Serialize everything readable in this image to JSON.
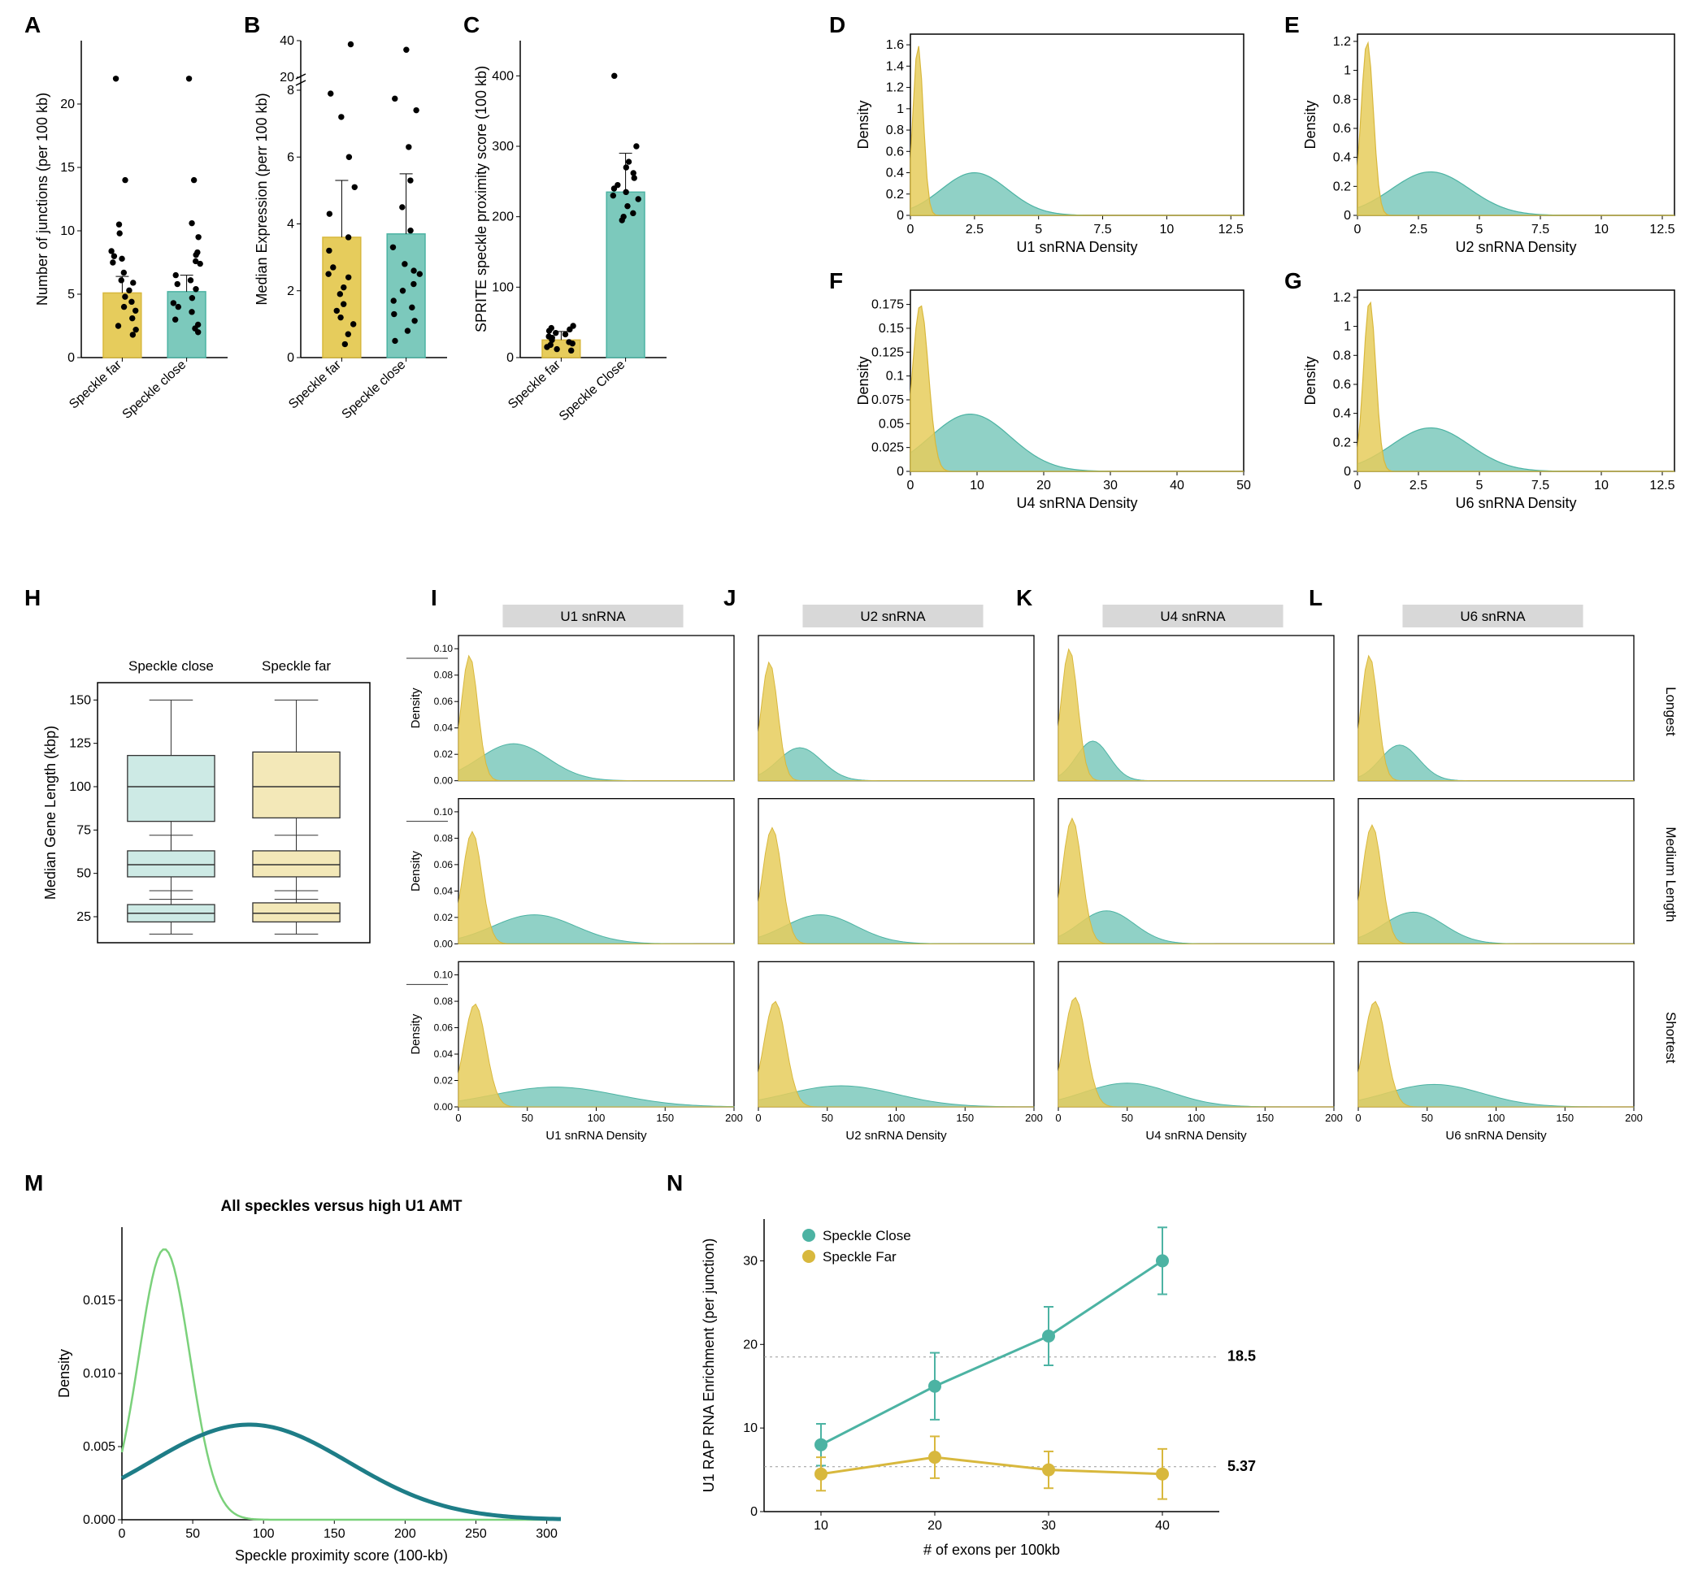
{
  "colors": {
    "teal": "#4cb3a3",
    "tealFill": "#7cc9bc",
    "yellow": "#d8b83d",
    "yellowFill": "#e6cc5c",
    "darkTeal": "#1e7d87",
    "lightGreen": "#7bd17b",
    "grid": "#d9d9d9",
    "axis": "#000",
    "dot": "#000",
    "dash": "#999"
  },
  "labels": {
    "A": "A",
    "B": "B",
    "C": "C",
    "D": "D",
    "E": "E",
    "F": "F",
    "G": "G",
    "H": "H",
    "I": "I",
    "J": "J",
    "K": "K",
    "L": "L",
    "M": "M",
    "N": "N"
  },
  "A": {
    "ylabel": "Number of junctions (per 100 kb)",
    "xcats": [
      "Speckle far",
      "Speckle close"
    ],
    "ylim": [
      0,
      25
    ],
    "yticks": [
      0,
      5,
      10,
      15,
      20
    ],
    "bars": [
      {
        "v": 5.1,
        "err": 1.3,
        "color": "yellow"
      },
      {
        "v": 5.2,
        "err": 1.3,
        "color": "teal"
      }
    ],
    "pts": [
      [
        1,
        4
      ],
      [
        1,
        4.8
      ],
      [
        1,
        5.3
      ],
      [
        1,
        3.1
      ],
      [
        1,
        2.2
      ],
      [
        1,
        6.7
      ],
      [
        1,
        7.5
      ],
      [
        1,
        8.4
      ],
      [
        1,
        1.8
      ],
      [
        1,
        2.5
      ],
      [
        1,
        3.7
      ],
      [
        1,
        4.4
      ],
      [
        1,
        5.9
      ],
      [
        1,
        6.1
      ],
      [
        1,
        9.8
      ],
      [
        1,
        10.5
      ],
      [
        1,
        7.8
      ],
      [
        1,
        8
      ],
      [
        1,
        14
      ],
      [
        1,
        22
      ],
      [
        2,
        4
      ],
      [
        2,
        4.7
      ],
      [
        2,
        5.4
      ],
      [
        2,
        3
      ],
      [
        2,
        2.3
      ],
      [
        2,
        6.5
      ],
      [
        2,
        7.4
      ],
      [
        2,
        8.3
      ],
      [
        2,
        2
      ],
      [
        2,
        2.6
      ],
      [
        2,
        3.6
      ],
      [
        2,
        4.3
      ],
      [
        2,
        6.1
      ],
      [
        2,
        5.8
      ],
      [
        2,
        9.5
      ],
      [
        2,
        10.6
      ],
      [
        2,
        7.6
      ],
      [
        2,
        8.1
      ],
      [
        2,
        14
      ],
      [
        2,
        22
      ]
    ]
  },
  "B": {
    "ylabel": "Median Expression (perr 100 kb)",
    "xcats": [
      "Speckle far",
      "Speckle close"
    ],
    "ylim": [
      0,
      8
    ],
    "yticks": [
      0,
      2,
      4,
      6,
      8
    ],
    "topBreak": {
      "values": [
        20,
        40
      ]
    },
    "bars": [
      {
        "v": 3.6,
        "err": 1.7,
        "color": "yellow"
      },
      {
        "v": 3.7,
        "err": 1.8,
        "color": "teal"
      }
    ],
    "pts": [
      [
        1,
        0.4
      ],
      [
        1,
        0.7
      ],
      [
        1,
        1
      ],
      [
        1,
        1.2
      ],
      [
        1,
        1.4
      ],
      [
        1,
        1.6
      ],
      [
        1,
        1.9
      ],
      [
        1,
        2.1
      ],
      [
        1,
        2.4
      ],
      [
        1,
        2.5
      ],
      [
        1,
        2.7
      ],
      [
        1,
        3.2
      ],
      [
        1,
        3.6
      ],
      [
        1,
        4.3
      ],
      [
        1,
        5.1
      ],
      [
        1,
        6
      ],
      [
        1,
        7.2
      ],
      [
        1,
        7.9
      ],
      [
        1,
        38
      ],
      [
        2,
        0.5
      ],
      [
        2,
        0.8
      ],
      [
        2,
        1.1
      ],
      [
        2,
        1.3
      ],
      [
        2,
        1.5
      ],
      [
        2,
        1.7
      ],
      [
        2,
        2
      ],
      [
        2,
        2.2
      ],
      [
        2,
        2.5
      ],
      [
        2,
        2.6
      ],
      [
        2,
        2.8
      ],
      [
        2,
        3.3
      ],
      [
        2,
        3.8
      ],
      [
        2,
        4.5
      ],
      [
        2,
        5.3
      ],
      [
        2,
        6.3
      ],
      [
        2,
        7.4
      ],
      [
        2,
        8.3
      ],
      [
        2,
        35
      ]
    ]
  },
  "C": {
    "ylabel": "SPRITE speckle proximity score (100 kb)",
    "xcats": [
      "Speckle far",
      "Speckle Close"
    ],
    "ylim": [
      0,
      450
    ],
    "yticks": [
      0,
      100,
      200,
      300,
      400
    ],
    "bars": [
      {
        "v": 25,
        "err": 12,
        "color": "yellow"
      },
      {
        "v": 235,
        "err": 55,
        "color": "teal"
      }
    ],
    "pts": [
      [
        1,
        10
      ],
      [
        1,
        12
      ],
      [
        1,
        15
      ],
      [
        1,
        18
      ],
      [
        1,
        20
      ],
      [
        1,
        22
      ],
      [
        1,
        25
      ],
      [
        1,
        28
      ],
      [
        1,
        30
      ],
      [
        1,
        33
      ],
      [
        1,
        35
      ],
      [
        1,
        38
      ],
      [
        1,
        40
      ],
      [
        1,
        42
      ],
      [
        1,
        45
      ],
      [
        2,
        195
      ],
      [
        2,
        200
      ],
      [
        2,
        205
      ],
      [
        2,
        215
      ],
      [
        2,
        225
      ],
      [
        2,
        230
      ],
      [
        2,
        235
      ],
      [
        2,
        240
      ],
      [
        2,
        245
      ],
      [
        2,
        255
      ],
      [
        2,
        262
      ],
      [
        2,
        270
      ],
      [
        2,
        278
      ],
      [
        2,
        300
      ],
      [
        2,
        400
      ]
    ]
  },
  "D": {
    "xlabel": "U1 snRNA Density",
    "ylabel": "Density",
    "xlim": [
      0,
      13
    ],
    "xticks": [
      0,
      2.5,
      5,
      7.5,
      10,
      12.5
    ],
    "ylim": [
      0,
      1.7
    ],
    "yticks": [
      0,
      0.2,
      0.4,
      0.6,
      0.8,
      1,
      1.2,
      1.4,
      1.6
    ],
    "yellowPeak": {
      "mu": 0.3,
      "sd": 0.2,
      "h": 1.6
    },
    "tealPeak": {
      "mu": 2.5,
      "sd": 1.3,
      "h": 0.4
    }
  },
  "E": {
    "xlabel": "U2 snRNA Density",
    "ylabel": "Density",
    "xlim": [
      0,
      13
    ],
    "xticks": [
      0,
      2.5,
      5,
      7.5,
      10,
      12.5
    ],
    "ylim": [
      0,
      1.25
    ],
    "yticks": [
      0,
      0.2,
      0.4,
      0.6,
      0.8,
      1,
      1.2
    ],
    "yellowPeak": {
      "mu": 0.4,
      "sd": 0.25,
      "h": 1.2
    },
    "tealPeak": {
      "mu": 3,
      "sd": 1.6,
      "h": 0.3
    }
  },
  "F": {
    "xlabel": "U4 snRNA Density",
    "ylabel": "Density",
    "xlim": [
      0,
      50
    ],
    "xticks": [
      0,
      10,
      20,
      30,
      40,
      50
    ],
    "ylim": [
      0,
      0.19
    ],
    "yticks": [
      0,
      0.025,
      0.05,
      0.075,
      0.1,
      0.125,
      0.15,
      0.175
    ],
    "yellowPeak": {
      "mu": 1.5,
      "sd": 1.2,
      "h": 0.175
    },
    "tealPeak": {
      "mu": 9,
      "sd": 6,
      "h": 0.06
    }
  },
  "G": {
    "xlabel": "U6 snRNA Density",
    "ylabel": "Density",
    "xlim": [
      0,
      13
    ],
    "xticks": [
      0,
      2.5,
      5,
      7.5,
      10,
      12.5
    ],
    "ylim": [
      0,
      1.25
    ],
    "yticks": [
      0,
      0.2,
      0.4,
      0.6,
      0.8,
      1,
      1.2
    ],
    "yellowPeak": {
      "mu": 0.5,
      "sd": 0.25,
      "h": 1.18
    },
    "tealPeak": {
      "mu": 3,
      "sd": 1.6,
      "h": 0.3
    }
  },
  "H": {
    "title": [
      "Speckle close",
      "Speckle far"
    ],
    "ylabel": "Median Gene Length (kbp)",
    "yticks": [
      25,
      50,
      75,
      100,
      125,
      150
    ],
    "ylim": [
      10,
      160
    ],
    "boxes": {
      "close": [
        {
          "q1": 80,
          "med": 100,
          "q3": 118,
          "wlo": 60,
          "whi": 150
        },
        {
          "q1": 48,
          "med": 55,
          "q3": 63,
          "wlo": 35,
          "whi": 72
        },
        {
          "q1": 22,
          "med": 27,
          "q3": 32,
          "wlo": 15,
          "whi": 40
        }
      ],
      "far": [
        {
          "q1": 82,
          "med": 100,
          "q3": 120,
          "wlo": 58,
          "whi": 150
        },
        {
          "q1": 48,
          "med": 55,
          "q3": 63,
          "wlo": 35,
          "whi": 72
        },
        {
          "q1": 22,
          "med": 27,
          "q3": 33,
          "wlo": 15,
          "whi": 40
        }
      ]
    }
  },
  "gridIL": {
    "cols": [
      {
        "label": "U1 snRNA",
        "xlabel": "U1 snRNA Density"
      },
      {
        "label": "U2 snRNA",
        "xlabel": "U2 snRNA Density"
      },
      {
        "label": "U4 snRNA",
        "xlabel": "U4 snRNA Density"
      },
      {
        "label": "U6 snRNA",
        "xlabel": "U6 snRNA Density"
      }
    ],
    "rowLabels": [
      "Longest",
      "Medium Length",
      "Shortest"
    ],
    "ylabel": "Density",
    "xlim": [
      0,
      200
    ],
    "xticks": [
      0,
      50,
      100,
      150,
      200
    ],
    "ylim": [
      0,
      0.11
    ],
    "yticks": [
      0,
      0.02,
      0.04,
      0.06,
      0.08,
      0.1
    ],
    "cells": [
      [
        {
          "y": {
            "mu": 8,
            "sd": 6,
            "h": 0.095
          },
          "t": {
            "mu": 40,
            "sd": 25,
            "h": 0.028
          }
        },
        {
          "y": {
            "mu": 8,
            "sd": 6,
            "h": 0.09
          },
          "t": {
            "mu": 30,
            "sd": 16,
            "h": 0.025
          }
        },
        {
          "y": {
            "mu": 8,
            "sd": 6,
            "h": 0.1
          },
          "t": {
            "mu": 25,
            "sd": 12,
            "h": 0.03
          }
        },
        {
          "y": {
            "mu": 8,
            "sd": 6,
            "h": 0.095
          },
          "t": {
            "mu": 30,
            "sd": 14,
            "h": 0.027
          }
        }
      ],
      [
        {
          "y": {
            "mu": 10,
            "sd": 7,
            "h": 0.085
          },
          "t": {
            "mu": 55,
            "sd": 30,
            "h": 0.022
          }
        },
        {
          "y": {
            "mu": 10,
            "sd": 7,
            "h": 0.088
          },
          "t": {
            "mu": 45,
            "sd": 26,
            "h": 0.022
          }
        },
        {
          "y": {
            "mu": 10,
            "sd": 7,
            "h": 0.095
          },
          "t": {
            "mu": 35,
            "sd": 20,
            "h": 0.025
          }
        },
        {
          "y": {
            "mu": 10,
            "sd": 7,
            "h": 0.09
          },
          "t": {
            "mu": 40,
            "sd": 22,
            "h": 0.024
          }
        }
      ],
      [
        {
          "y": {
            "mu": 12,
            "sd": 8,
            "h": 0.078
          },
          "t": {
            "mu": 70,
            "sd": 45,
            "h": 0.015
          }
        },
        {
          "y": {
            "mu": 12,
            "sd": 8,
            "h": 0.08
          },
          "t": {
            "mu": 60,
            "sd": 40,
            "h": 0.016
          }
        },
        {
          "y": {
            "mu": 12,
            "sd": 8,
            "h": 0.083
          },
          "t": {
            "mu": 50,
            "sd": 32,
            "h": 0.018
          }
        },
        {
          "y": {
            "mu": 12,
            "sd": 8,
            "h": 0.08
          },
          "t": {
            "mu": 55,
            "sd": 35,
            "h": 0.017
          }
        }
      ]
    ]
  },
  "M": {
    "title": "All speckles versus high U1 AMT",
    "xlabel": "Speckle proximity score (100-kb)",
    "ylabel": "Density",
    "xlim": [
      0,
      310
    ],
    "xticks": [
      0,
      50,
      100,
      150,
      200,
      250,
      300
    ],
    "ylim": [
      0,
      0.02
    ],
    "yticks": [
      0,
      0.005,
      0.01,
      0.015
    ],
    "green": {
      "mu": 30,
      "sd": 18,
      "h": 0.0185
    },
    "teal": {
      "mu": 90,
      "sd": 70,
      "h": 0.0065
    }
  },
  "N": {
    "legend": [
      "Speckle Close",
      "Speckle Far"
    ],
    "xlabel": "# of exons per 100kb",
    "ylabel": "U1 RAP RNA Enrichment (per junction)",
    "xlim": [
      5,
      45
    ],
    "xticks": [
      10,
      20,
      30,
      40
    ],
    "ylim": [
      0,
      35
    ],
    "yticks": [
      0,
      10,
      20,
      30
    ],
    "close": [
      [
        10,
        8,
        2.5
      ],
      [
        20,
        15,
        4
      ],
      [
        30,
        21,
        3.5
      ],
      [
        40,
        30,
        4
      ]
    ],
    "far": [
      [
        10,
        4.5,
        2
      ],
      [
        20,
        6.5,
        2.5
      ],
      [
        30,
        5,
        2.2
      ],
      [
        40,
        4.5,
        3
      ]
    ],
    "annot": [
      [
        "18.5",
        18.5
      ],
      [
        "5.37",
        5.37
      ]
    ]
  }
}
